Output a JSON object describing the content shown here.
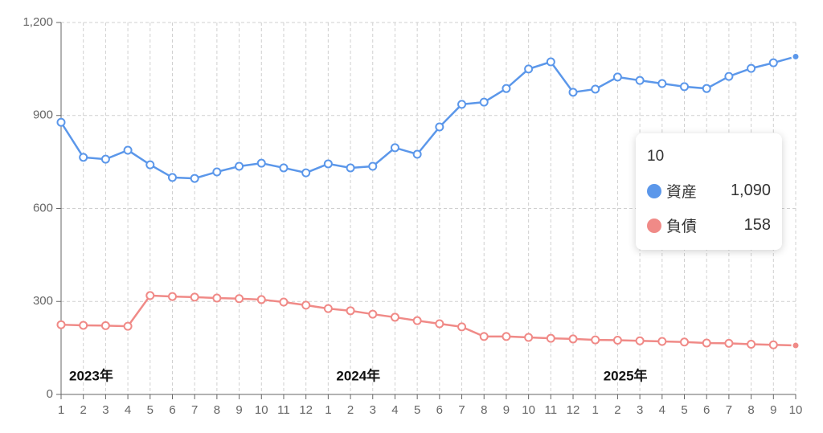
{
  "chart_data": {
    "type": "line",
    "categories": [
      "1",
      "2",
      "3",
      "4",
      "5",
      "6",
      "7",
      "8",
      "9",
      "10",
      "11",
      "12",
      "1",
      "2",
      "3",
      "4",
      "5",
      "6",
      "7",
      "8",
      "9",
      "10",
      "11",
      "12",
      "1",
      "2",
      "3",
      "4",
      "5",
      "6",
      "7",
      "8",
      "9",
      "10"
    ],
    "year_labels": [
      "2023年",
      "2024年",
      "2025年"
    ],
    "series": [
      {
        "name": "資産",
        "color": "#5b97ea",
        "values": [
          878,
          765,
          759,
          788,
          741,
          700,
          697,
          718,
          736,
          746,
          731,
          715,
          744,
          731,
          736,
          796,
          775,
          863,
          936,
          943,
          987,
          1050,
          1073,
          975,
          985,
          1024,
          1013,
          1003,
          993,
          987,
          1026,
          1052,
          1070,
          1090
        ]
      },
      {
        "name": "負債",
        "color": "#f08a87",
        "values": [
          225,
          223,
          222,
          220,
          319,
          316,
          314,
          311,
          309,
          306,
          298,
          288,
          277,
          270,
          259,
          249,
          238,
          228,
          218,
          187,
          187,
          184,
          181,
          179,
          176,
          175,
          173,
          171,
          169,
          166,
          165,
          162,
          160,
          158
        ]
      }
    ],
    "tooltip": [
      "1,090",
      "158"
    ],
    "ylim": [
      0,
      1200
    ],
    "yticks": [
      0,
      300,
      600,
      900,
      {
        "value": 1200,
        "label": "1,200"
      }
    ],
    "grid": true
  }
}
